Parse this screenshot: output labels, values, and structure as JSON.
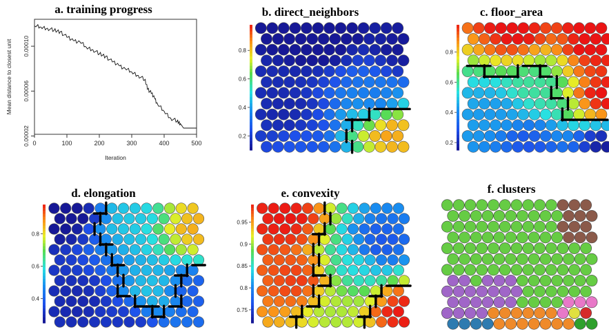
{
  "chart_data": [
    {
      "id": "a",
      "type": "line",
      "title": "a. training progress",
      "xlabel": "Iteration",
      "ylabel": "Mean distance to closest unit",
      "xlim": [
        0,
        500
      ],
      "ylim": [
        2.15e-05,
        0.000124
      ],
      "x_ticks": [
        0,
        100,
        200,
        300,
        400,
        500
      ],
      "y_ticks": [
        2e-05,
        6e-05,
        0.0001
      ],
      "y_tick_labels": [
        "0.00002",
        "0.00006",
        "0.00010"
      ],
      "x": [
        1,
        20,
        40,
        60,
        80,
        100,
        120,
        140,
        160,
        180,
        200,
        220,
        240,
        260,
        280,
        300,
        320,
        340,
        350,
        360,
        370,
        380,
        400,
        420,
        440,
        450,
        460,
        480,
        500
      ],
      "y": [
        0.000118,
        0.000117,
        0.000116,
        0.000114,
        0.000113,
        0.000108,
        0.000105,
        0.000104,
        9.9e-05,
        9.7e-05,
        9.3e-05,
        9.1e-05,
        8.6e-05,
        8.3e-05,
        8e-05,
        7.7e-05,
        7.4e-05,
        7e-05,
        6.2e-05,
        5.8e-05,
        5.4e-05,
        4.8e-05,
        4.2e-05,
        3.6e-05,
        3.3e-05,
        3.1e-05,
        2.7e-05,
        2.7e-05,
        2.7e-05
      ]
    },
    {
      "id": "b",
      "type": "heatmap",
      "title": "b. direct_neighbors",
      "grid": {
        "cols": 13,
        "rows": 12,
        "layout": "hexagonal"
      },
      "legend_ticks": [
        0.2,
        0.4,
        0.6,
        0.8
      ],
      "legend_labels": [
        "0.2",
        "0.4",
        "0.6",
        "0.8"
      ],
      "value_range": [
        0.1,
        0.98
      ],
      "field": [
        {
          "x": 5,
          "y": 12,
          "v": 0.02
        },
        {
          "x": 11,
          "y": 2.5,
          "v": 0.85
        },
        {
          "x": 10,
          "y": 5.5,
          "v": 0.32
        },
        {
          "x": 3,
          "y": 1,
          "v": 0.25
        },
        {
          "x": 2,
          "y": 4,
          "v": 0.13
        },
        {
          "x": 12,
          "y": 10,
          "v": 0.1
        }
      ]
    },
    {
      "id": "c",
      "type": "heatmap",
      "title": "c. floor_area",
      "grid": {
        "cols": 13,
        "rows": 12,
        "layout": "hexagonal"
      },
      "legend_ticks": [
        0.2,
        0.4,
        0.6,
        0.8
      ],
      "legend_labels": [
        "0.2",
        "0.4",
        "0.6",
        "0.8"
      ],
      "value_range": [
        0.15,
        0.98
      ],
      "field": [
        {
          "x": 4,
          "y": 12,
          "v": 1.0
        },
        {
          "x": 11,
          "y": 11,
          "v": 1.0
        },
        {
          "x": 6,
          "y": 6.5,
          "v": 0.58
        },
        {
          "x": 2,
          "y": 4,
          "v": 0.42
        },
        {
          "x": 5,
          "y": 1,
          "v": 0.28
        },
        {
          "x": 12,
          "y": 1,
          "v": 0.15
        },
        {
          "x": 12,
          "y": 5.5,
          "v": 1.0
        }
      ]
    },
    {
      "id": "d",
      "type": "heatmap",
      "title": "d. elongation",
      "grid": {
        "cols": 13,
        "rows": 12,
        "layout": "hexagonal"
      },
      "legend_ticks": [
        0.4,
        0.6,
        0.8
      ],
      "legend_labels": [
        "0.4",
        "0.6",
        "0.8"
      ],
      "value_range": [
        0.25,
        0.98
      ],
      "field": [
        {
          "x": 1,
          "y": 12,
          "v": 0.2
        },
        {
          "x": 6,
          "y": 11,
          "v": 0.55
        },
        {
          "x": 12,
          "y": 10,
          "v": 0.85
        },
        {
          "x": 2,
          "y": 3,
          "v": 0.28
        },
        {
          "x": 8,
          "y": 4,
          "v": 0.55
        },
        {
          "x": 6,
          "y": 1,
          "v": 0.3
        },
        {
          "x": 12,
          "y": 4,
          "v": 0.38
        }
      ]
    },
    {
      "id": "e",
      "type": "heatmap",
      "title": "e. convexity",
      "grid": {
        "cols": 13,
        "rows": 12,
        "layout": "hexagonal"
      },
      "legend_ticks": [
        0.75,
        0.8,
        0.85,
        0.9,
        0.95
      ],
      "legend_labels": [
        "0.75",
        "0.8",
        "0.85",
        "0.9",
        "0.95"
      ],
      "value_range": [
        0.72,
        0.99
      ],
      "field": [
        {
          "x": 2,
          "y": 11,
          "v": 0.99
        },
        {
          "x": 10,
          "y": 8.5,
          "v": 0.76
        },
        {
          "x": 8,
          "y": 6.5,
          "v": 0.84
        },
        {
          "x": 3,
          "y": 5,
          "v": 0.98
        },
        {
          "x": 6,
          "y": 2,
          "v": 0.9
        },
        {
          "x": 12,
          "y": 2,
          "v": 0.99
        }
      ]
    },
    {
      "id": "f",
      "type": "heatmap",
      "title": "f. clusters",
      "grid": {
        "cols": 13,
        "rows": 12,
        "layout": "hexagonal"
      },
      "cluster_colors": [
        "#8b5a4a",
        "#66cc44",
        "#a066c8",
        "#2e7bb0",
        "#ef8a2a",
        "#e878c8",
        "#e0e040",
        "#2ea02c",
        "#d62a2a"
      ],
      "clusters": [
        [
          1,
          1,
          1,
          1,
          1,
          1,
          1,
          1,
          1,
          1,
          0,
          0,
          0
        ],
        [
          1,
          1,
          1,
          1,
          1,
          1,
          1,
          1,
          1,
          1,
          0,
          0,
          0
        ],
        [
          1,
          1,
          1,
          1,
          1,
          1,
          1,
          1,
          1,
          1,
          0,
          0,
          0
        ],
        [
          1,
          1,
          1,
          1,
          1,
          1,
          1,
          1,
          1,
          1,
          0,
          0,
          0
        ],
        [
          1,
          1,
          1,
          1,
          1,
          1,
          1,
          1,
          1,
          1,
          1,
          1,
          1
        ],
        [
          1,
          1,
          1,
          1,
          1,
          1,
          1,
          1,
          1,
          1,
          1,
          1,
          1
        ],
        [
          1,
          1,
          1,
          1,
          1,
          1,
          1,
          1,
          1,
          1,
          1,
          1,
          1
        ],
        [
          2,
          2,
          1,
          2,
          2,
          2,
          1,
          1,
          1,
          1,
          1,
          1,
          1
        ],
        [
          2,
          2,
          2,
          2,
          2,
          2,
          2,
          1,
          1,
          1,
          1,
          1,
          1
        ],
        [
          2,
          2,
          2,
          2,
          2,
          2,
          1,
          1,
          1,
          1,
          5,
          5,
          5
        ],
        [
          2,
          2,
          2,
          2,
          4,
          4,
          4,
          4,
          4,
          4,
          5,
          6,
          8
        ],
        [
          3,
          3,
          3,
          3,
          4,
          4,
          4,
          4,
          4,
          4,
          4,
          7,
          7
        ]
      ]
    }
  ]
}
